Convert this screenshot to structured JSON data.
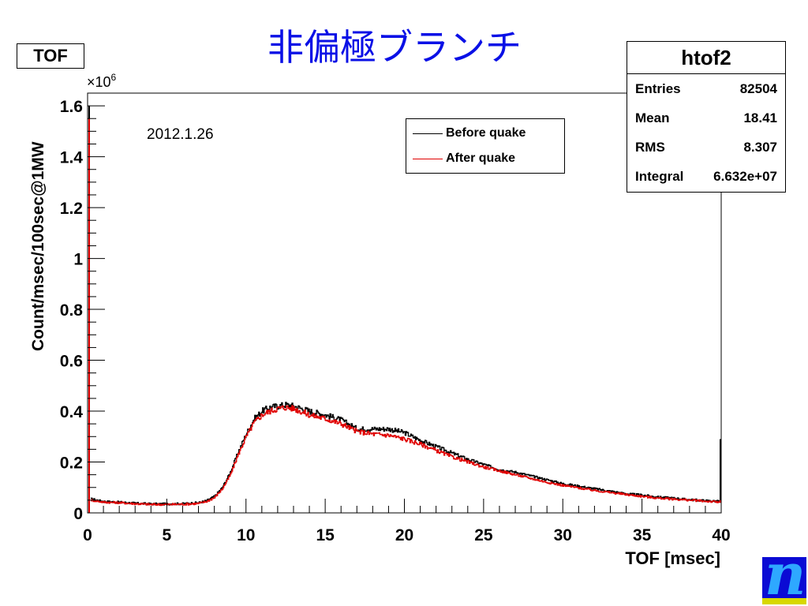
{
  "slide": {
    "title": "非偏極ブランチ"
  },
  "frame_label": "TOF",
  "stats_box": {
    "title": "htof2",
    "rows": [
      {
        "key": "Entries",
        "value": "82504"
      },
      {
        "key": "Mean",
        "value": "18.41"
      },
      {
        "key": "RMS",
        "value": "8.307"
      },
      {
        "key": "Integral",
        "value": "6.632e+07"
      }
    ]
  },
  "annotation": "2012.1.26",
  "colors": {
    "title": "#0a10e6",
    "before": "#000000",
    "after": "#e00000"
  },
  "logo": {
    "icon": "n-logo-icon"
  },
  "chart_data": {
    "type": "line",
    "xlabel": "TOF [msec]",
    "ylabel": "Count/msec/100sec@1MW",
    "y_multiplier_label": "×10",
    "y_multiplier_exponent": "6",
    "xlim": [
      0,
      40
    ],
    "ylim": [
      0,
      1.65
    ],
    "x_ticks": [
      "0",
      "5",
      "10",
      "15",
      "20",
      "25",
      "30",
      "35",
      "40"
    ],
    "y_ticks": [
      "0",
      "0.2",
      "0.4",
      "0.6",
      "0.8",
      "1",
      "1.2",
      "1.4",
      "1.6"
    ],
    "y_tick_values": [
      0,
      0.2,
      0.4,
      0.6,
      0.8,
      1.0,
      1.2,
      1.4,
      1.6
    ],
    "legend_position": "top-right",
    "series": [
      {
        "name": "Before quake",
        "x": [
          0,
          0.2,
          1,
          2,
          3,
          4,
          5,
          6,
          7,
          7.5,
          8,
          8.5,
          9,
          9.5,
          10,
          10.5,
          11,
          11.5,
          12,
          12.5,
          13,
          14,
          15,
          16,
          17,
          18,
          19,
          20,
          21,
          22,
          23,
          24,
          25,
          26,
          27,
          28,
          29,
          30,
          31,
          32,
          33,
          34,
          35,
          36,
          37,
          38,
          39,
          39.9,
          40
        ],
        "values": [
          1.6,
          0.055,
          0.045,
          0.042,
          0.038,
          0.035,
          0.035,
          0.036,
          0.04,
          0.048,
          0.065,
          0.1,
          0.16,
          0.24,
          0.31,
          0.37,
          0.4,
          0.415,
          0.42,
          0.425,
          0.42,
          0.4,
          0.385,
          0.365,
          0.33,
          0.33,
          0.33,
          0.315,
          0.285,
          0.26,
          0.235,
          0.21,
          0.19,
          0.17,
          0.16,
          0.145,
          0.13,
          0.115,
          0.105,
          0.095,
          0.085,
          0.075,
          0.07,
          0.062,
          0.058,
          0.052,
          0.048,
          0.045,
          0.29
        ]
      },
      {
        "name": "After quake",
        "x": [
          0,
          0.2,
          1,
          2,
          3,
          4,
          5,
          6,
          7,
          7.5,
          8,
          8.5,
          9,
          9.5,
          10,
          10.5,
          11,
          11.5,
          12,
          12.5,
          13,
          14,
          15,
          16,
          17,
          18,
          19,
          20,
          21,
          22,
          23,
          24,
          25,
          26,
          27,
          28,
          29,
          30,
          31,
          32,
          33,
          34,
          35,
          36,
          37,
          38,
          39,
          39.9,
          40
        ],
        "values": [
          1.55,
          0.05,
          0.042,
          0.04,
          0.036,
          0.033,
          0.033,
          0.034,
          0.037,
          0.045,
          0.06,
          0.095,
          0.15,
          0.23,
          0.3,
          0.355,
          0.385,
          0.4,
          0.41,
          0.415,
          0.41,
          0.385,
          0.37,
          0.35,
          0.32,
          0.31,
          0.305,
          0.29,
          0.27,
          0.245,
          0.22,
          0.2,
          0.18,
          0.165,
          0.15,
          0.135,
          0.12,
          0.108,
          0.098,
          0.088,
          0.08,
          0.072,
          0.065,
          0.058,
          0.054,
          0.05,
          0.046,
          0.042,
          0.05
        ]
      }
    ]
  }
}
